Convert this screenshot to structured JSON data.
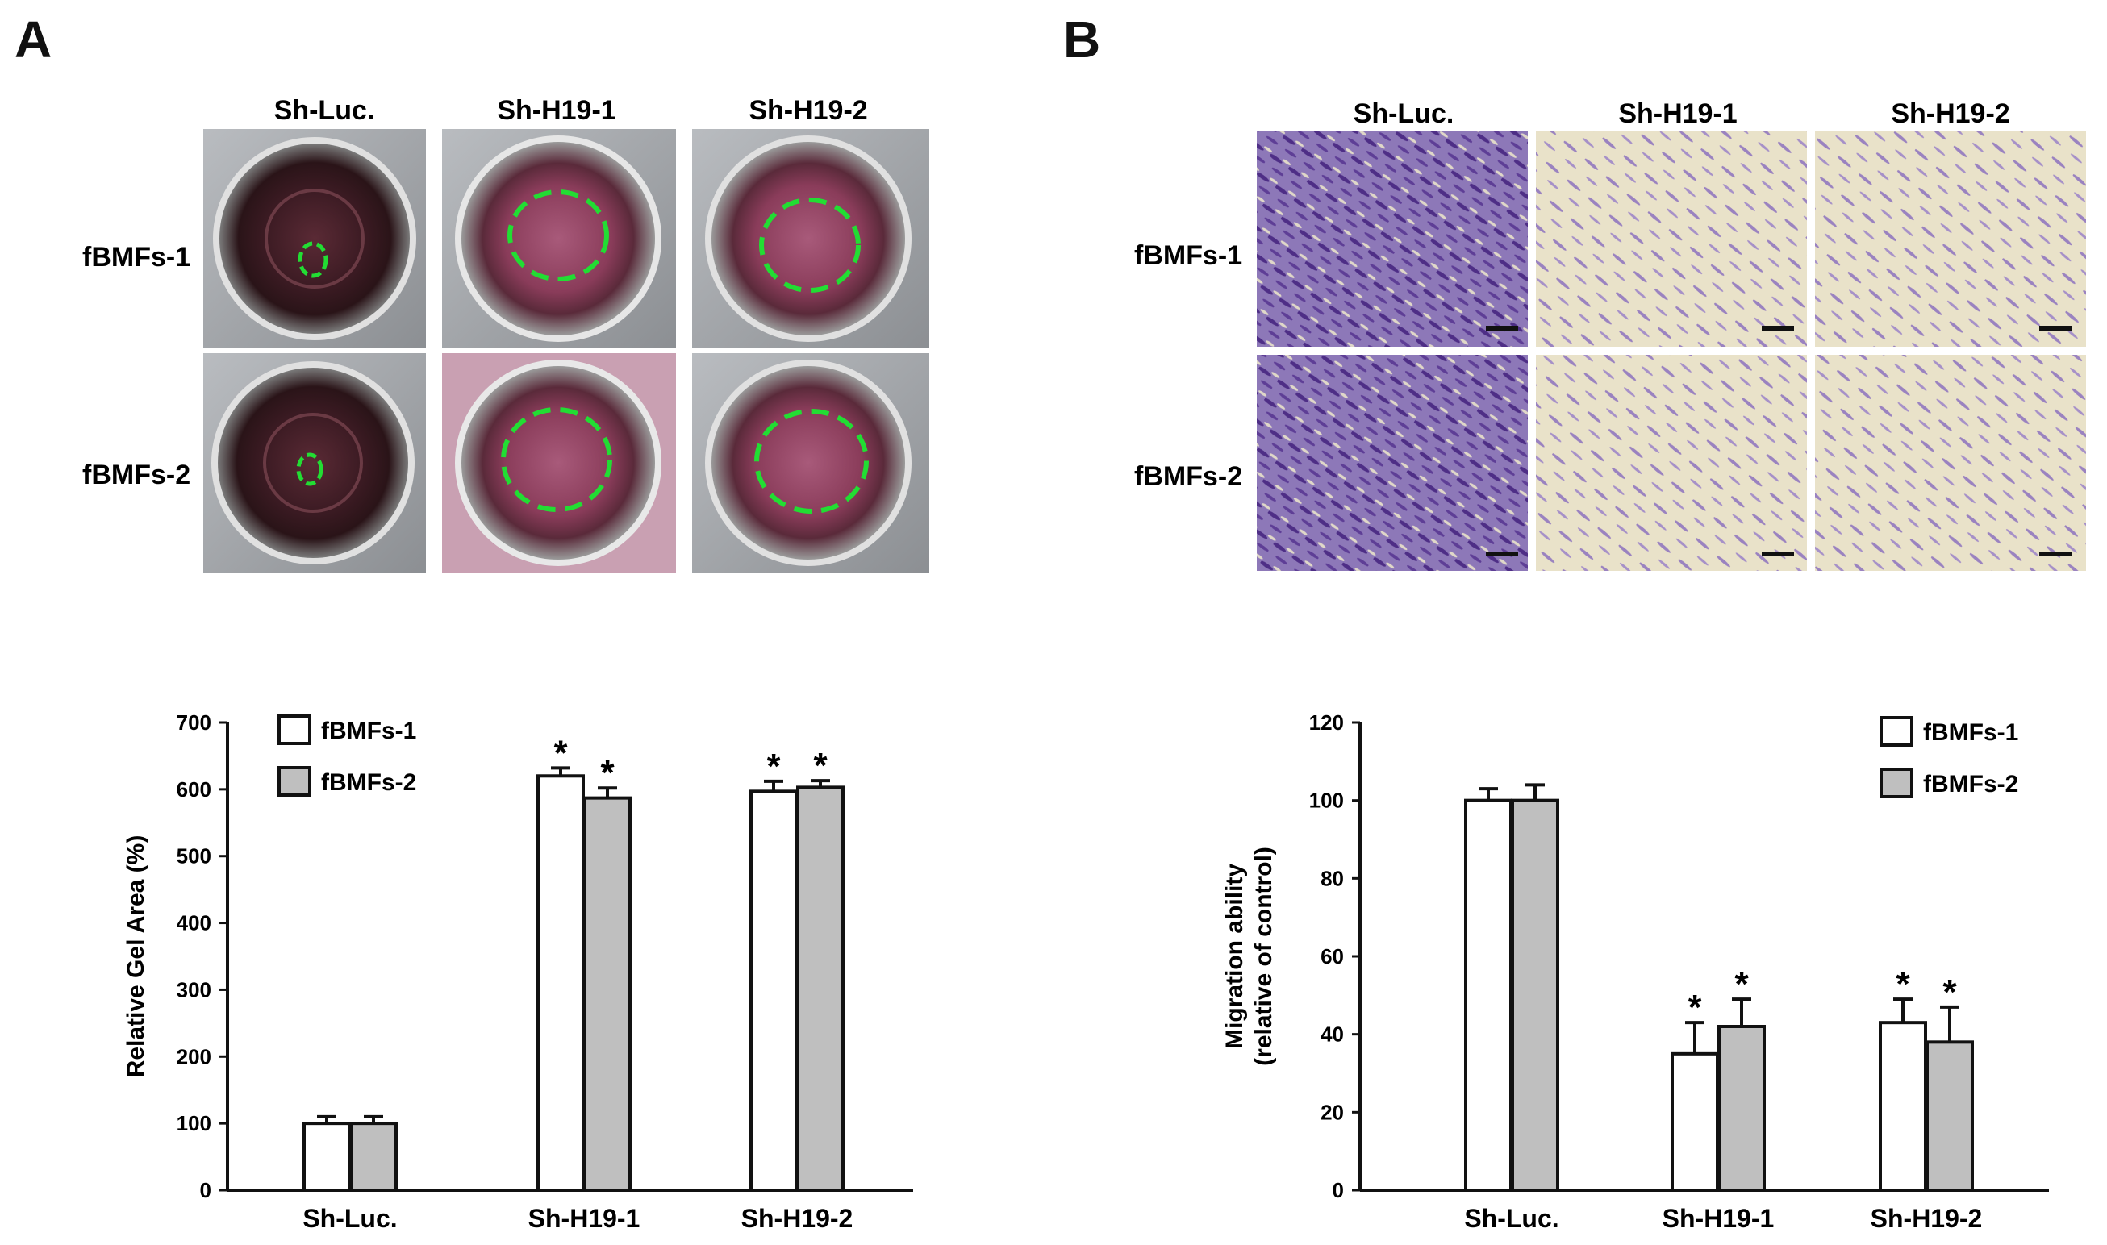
{
  "panels": {
    "a_letter": "A",
    "b_letter": "B"
  },
  "panel_a_images": {
    "columns": [
      "Sh-Luc.",
      "Sh-H19-1",
      "Sh-H19-2"
    ],
    "rows": [
      "fBMFs-1",
      "fBMFs-2"
    ]
  },
  "panel_b_images": {
    "columns": [
      "Sh-Luc.",
      "Sh-H19-1",
      "Sh-H19-2"
    ],
    "rows": [
      "fBMFs-1",
      "fBMFs-2"
    ]
  },
  "colors": {
    "bar_series1": "#ffffff",
    "bar_series2": "#bfbfbf",
    "outline": "#111111",
    "dish_dark": "#3a1e22",
    "dish_pink": "#8a3c5a",
    "gel_outline": "#22dd33",
    "micro_bg": "#e9e2c9",
    "micro_cells_dense": "#6a4aa0",
    "micro_cells_sparse": "#9a82c0"
  },
  "chart_data": [
    {
      "type": "bar",
      "categories": [
        "Sh-Luc.",
        "Sh-H19-1",
        "Sh-H19-2"
      ],
      "series": [
        {
          "name": "fBMFs-1",
          "values": [
            100,
            620,
            597
          ],
          "errors": [
            10,
            12,
            15
          ]
        },
        {
          "name": "fBMFs-2",
          "values": [
            100,
            587,
            603
          ],
          "errors": [
            10,
            15,
            10
          ]
        }
      ],
      "significance": [
        [
          "",
          "*",
          "*"
        ],
        [
          "",
          "*",
          "*"
        ]
      ],
      "ylabel": "Relative Gel Area (%)",
      "ylim": [
        0,
        700
      ],
      "yticks": [
        "0",
        "100",
        "200",
        "300",
        "400",
        "500",
        "600",
        "700"
      ],
      "legend_position": "top-left",
      "grid": false
    },
    {
      "type": "bar",
      "categories": [
        "Sh-Luc.",
        "Sh-H19-1",
        "Sh-H19-2"
      ],
      "series": [
        {
          "name": "fBMFs-1",
          "values": [
            100,
            35,
            43
          ],
          "errors": [
            3,
            8,
            6
          ]
        },
        {
          "name": "fBMFs-2",
          "values": [
            100,
            42,
            38
          ],
          "errors": [
            4,
            7,
            9
          ]
        }
      ],
      "significance": [
        [
          "",
          "*",
          "*"
        ],
        [
          "",
          "*",
          "*"
        ]
      ],
      "ylabel": "Migration ability",
      "ylabel2": "(relative of control)",
      "ylim": [
        0,
        120
      ],
      "yticks": [
        "0",
        "20",
        "40",
        "60",
        "80",
        "100",
        "120"
      ],
      "legend_position": "top-right",
      "grid": false
    }
  ]
}
